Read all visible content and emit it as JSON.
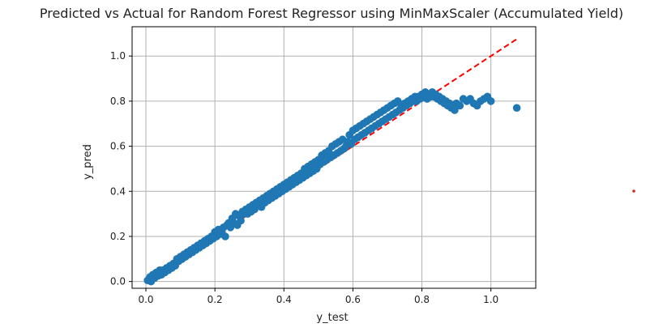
{
  "chart_data": {
    "type": "scatter",
    "title": "Predicted vs Actual for Random Forest Regressor using MinMaxScaler (Accumulated Yield)",
    "xlabel": "y_test",
    "ylabel": "y_pred",
    "xlim": [
      -0.04,
      1.13
    ],
    "ylim": [
      -0.03,
      1.13
    ],
    "xticks": [
      0.0,
      0.2,
      0.4,
      0.6,
      0.8,
      1.0
    ],
    "xtick_labels": [
      "0.0",
      "0.2",
      "0.4",
      "0.6",
      "0.8",
      "1.0"
    ],
    "yticks": [
      0.0,
      0.2,
      0.4,
      0.6,
      0.8,
      1.0
    ],
    "ytick_labels": [
      "0.0",
      "0.2",
      "0.4",
      "0.6",
      "0.8",
      "1.0"
    ],
    "grid": true,
    "marker_color": "#1f77b4",
    "reference_line": {
      "style": "dashed",
      "color": "#ff0000",
      "points": [
        [
          0.0,
          0.0
        ],
        [
          1.08,
          1.08
        ]
      ]
    },
    "series": [
      {
        "points": [
          [
            0.005,
            0.005
          ],
          [
            0.01,
            0.01
          ],
          [
            0.012,
            0.02
          ],
          [
            0.015,
            0.0
          ],
          [
            0.02,
            0.03
          ],
          [
            0.025,
            0.015
          ],
          [
            0.03,
            0.04
          ],
          [
            0.035,
            0.025
          ],
          [
            0.04,
            0.05
          ],
          [
            0.045,
            0.03
          ],
          [
            0.05,
            0.05
          ],
          [
            0.055,
            0.04
          ],
          [
            0.06,
            0.06
          ],
          [
            0.065,
            0.05
          ],
          [
            0.07,
            0.07
          ],
          [
            0.075,
            0.06
          ],
          [
            0.08,
            0.08
          ],
          [
            0.085,
            0.07
          ],
          [
            0.09,
            0.1
          ],
          [
            0.095,
            0.09
          ],
          [
            0.1,
            0.11
          ],
          [
            0.105,
            0.1
          ],
          [
            0.11,
            0.12
          ],
          [
            0.115,
            0.11
          ],
          [
            0.12,
            0.13
          ],
          [
            0.125,
            0.12
          ],
          [
            0.13,
            0.14
          ],
          [
            0.135,
            0.13
          ],
          [
            0.14,
            0.15
          ],
          [
            0.145,
            0.14
          ],
          [
            0.15,
            0.16
          ],
          [
            0.155,
            0.15
          ],
          [
            0.16,
            0.17
          ],
          [
            0.165,
            0.16
          ],
          [
            0.17,
            0.18
          ],
          [
            0.175,
            0.17
          ],
          [
            0.18,
            0.19
          ],
          [
            0.185,
            0.18
          ],
          [
            0.19,
            0.2
          ],
          [
            0.195,
            0.19
          ],
          [
            0.2,
            0.22
          ],
          [
            0.205,
            0.2
          ],
          [
            0.21,
            0.23
          ],
          [
            0.215,
            0.21
          ],
          [
            0.22,
            0.22
          ],
          [
            0.225,
            0.24
          ],
          [
            0.23,
            0.2
          ],
          [
            0.235,
            0.25
          ],
          [
            0.24,
            0.26
          ],
          [
            0.245,
            0.24
          ],
          [
            0.25,
            0.28
          ],
          [
            0.255,
            0.26
          ],
          [
            0.26,
            0.3
          ],
          [
            0.265,
            0.25
          ],
          [
            0.27,
            0.29
          ],
          [
            0.275,
            0.27
          ],
          [
            0.28,
            0.31
          ],
          [
            0.285,
            0.3
          ],
          [
            0.29,
            0.32
          ],
          [
            0.295,
            0.3
          ],
          [
            0.3,
            0.33
          ],
          [
            0.305,
            0.31
          ],
          [
            0.31,
            0.34
          ],
          [
            0.315,
            0.32
          ],
          [
            0.32,
            0.35
          ],
          [
            0.325,
            0.34
          ],
          [
            0.33,
            0.36
          ],
          [
            0.335,
            0.33
          ],
          [
            0.34,
            0.37
          ],
          [
            0.345,
            0.35
          ],
          [
            0.35,
            0.38
          ],
          [
            0.355,
            0.36
          ],
          [
            0.36,
            0.39
          ],
          [
            0.365,
            0.37
          ],
          [
            0.37,
            0.4
          ],
          [
            0.375,
            0.38
          ],
          [
            0.38,
            0.41
          ],
          [
            0.385,
            0.39
          ],
          [
            0.39,
            0.42
          ],
          [
            0.395,
            0.4
          ],
          [
            0.4,
            0.43
          ],
          [
            0.405,
            0.41
          ],
          [
            0.41,
            0.44
          ],
          [
            0.415,
            0.42
          ],
          [
            0.42,
            0.45
          ],
          [
            0.425,
            0.43
          ],
          [
            0.43,
            0.46
          ],
          [
            0.435,
            0.44
          ],
          [
            0.44,
            0.47
          ],
          [
            0.445,
            0.45
          ],
          [
            0.45,
            0.48
          ],
          [
            0.455,
            0.46
          ],
          [
            0.46,
            0.5
          ],
          [
            0.465,
            0.47
          ],
          [
            0.47,
            0.51
          ],
          [
            0.475,
            0.48
          ],
          [
            0.48,
            0.52
          ],
          [
            0.485,
            0.49
          ],
          [
            0.49,
            0.53
          ],
          [
            0.495,
            0.5
          ],
          [
            0.5,
            0.54
          ],
          [
            0.505,
            0.52
          ],
          [
            0.51,
            0.56
          ],
          [
            0.515,
            0.53
          ],
          [
            0.52,
            0.57
          ],
          [
            0.525,
            0.54
          ],
          [
            0.53,
            0.58
          ],
          [
            0.535,
            0.55
          ],
          [
            0.54,
            0.6
          ],
          [
            0.545,
            0.56
          ],
          [
            0.55,
            0.61
          ],
          [
            0.555,
            0.57
          ],
          [
            0.56,
            0.62
          ],
          [
            0.565,
            0.58
          ],
          [
            0.57,
            0.63
          ],
          [
            0.575,
            0.59
          ],
          [
            0.58,
            0.6
          ],
          [
            0.585,
            0.62
          ],
          [
            0.59,
            0.65
          ],
          [
            0.595,
            0.61
          ],
          [
            0.6,
            0.67
          ],
          [
            0.605,
            0.63
          ],
          [
            0.61,
            0.68
          ],
          [
            0.615,
            0.64
          ],
          [
            0.62,
            0.69
          ],
          [
            0.625,
            0.65
          ],
          [
            0.63,
            0.7
          ],
          [
            0.635,
            0.66
          ],
          [
            0.64,
            0.71
          ],
          [
            0.645,
            0.67
          ],
          [
            0.65,
            0.72
          ],
          [
            0.655,
            0.68
          ],
          [
            0.66,
            0.73
          ],
          [
            0.665,
            0.69
          ],
          [
            0.67,
            0.74
          ],
          [
            0.675,
            0.7
          ],
          [
            0.68,
            0.75
          ],
          [
            0.685,
            0.71
          ],
          [
            0.69,
            0.76
          ],
          [
            0.695,
            0.72
          ],
          [
            0.7,
            0.77
          ],
          [
            0.705,
            0.73
          ],
          [
            0.71,
            0.78
          ],
          [
            0.715,
            0.74
          ],
          [
            0.72,
            0.79
          ],
          [
            0.725,
            0.75
          ],
          [
            0.73,
            0.8
          ],
          [
            0.735,
            0.76
          ],
          [
            0.74,
            0.78
          ],
          [
            0.745,
            0.77
          ],
          [
            0.75,
            0.79
          ],
          [
            0.755,
            0.78
          ],
          [
            0.76,
            0.8
          ],
          [
            0.765,
            0.79
          ],
          [
            0.77,
            0.81
          ],
          [
            0.775,
            0.8
          ],
          [
            0.78,
            0.82
          ],
          [
            0.785,
            0.8
          ],
          [
            0.79,
            0.82
          ],
          [
            0.795,
            0.81
          ],
          [
            0.8,
            0.83
          ],
          [
            0.805,
            0.82
          ],
          [
            0.81,
            0.84
          ],
          [
            0.815,
            0.81
          ],
          [
            0.82,
            0.83
          ],
          [
            0.825,
            0.82
          ],
          [
            0.83,
            0.84
          ],
          [
            0.835,
            0.82
          ],
          [
            0.84,
            0.83
          ],
          [
            0.845,
            0.81
          ],
          [
            0.85,
            0.82
          ],
          [
            0.855,
            0.8
          ],
          [
            0.86,
            0.81
          ],
          [
            0.865,
            0.79
          ],
          [
            0.87,
            0.8
          ],
          [
            0.875,
            0.78
          ],
          [
            0.88,
            0.79
          ],
          [
            0.885,
            0.77
          ],
          [
            0.89,
            0.78
          ],
          [
            0.895,
            0.76
          ],
          [
            0.9,
            0.79
          ],
          [
            0.91,
            0.78
          ],
          [
            0.92,
            0.81
          ],
          [
            0.93,
            0.8
          ],
          [
            0.94,
            0.81
          ],
          [
            0.95,
            0.79
          ],
          [
            0.96,
            0.78
          ],
          [
            0.97,
            0.8
          ],
          [
            0.98,
            0.81
          ],
          [
            0.99,
            0.82
          ],
          [
            1.0,
            0.8
          ],
          [
            1.075,
            0.77
          ]
        ]
      }
    ]
  },
  "annotation_dot": {
    "color": "#d62728"
  }
}
